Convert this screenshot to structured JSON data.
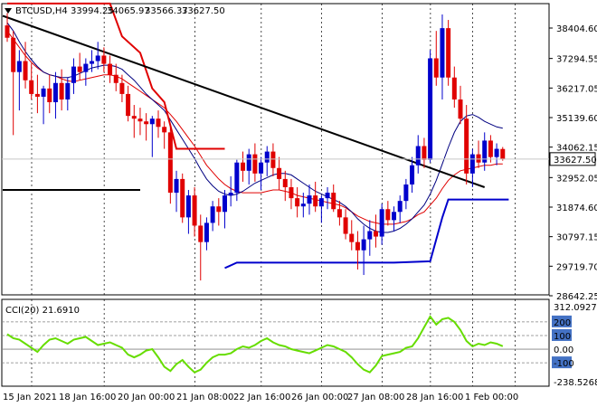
{
  "header": {
    "symbol": "BTCUSD,H4",
    "open": "33994.25",
    "high": "34065.97",
    "low": "33566.37",
    "close": "33627.50"
  },
  "chart_data": [
    {
      "type": "candlestick",
      "symbol": "BTCUSD",
      "timeframe": "H4",
      "price_axis_labels": [
        "38404.60",
        "37294.55",
        "36217.05",
        "35139.60",
        "34062.15",
        "32952.05",
        "31874.60",
        "30797.15",
        "29719.70",
        "28642.25"
      ],
      "price_axis_values": [
        38404.6,
        37294.55,
        36217.05,
        35139.6,
        34062.15,
        32952.05,
        31874.6,
        30797.15,
        29719.7,
        28642.25
      ],
      "ylim": [
        28642.25,
        39481.0
      ],
      "current_price_label": "33627.50",
      "current_price": 33627.5,
      "time_labels": [
        "15 Jan 2021",
        "18 Jan 16:00",
        "20 Jan 00:00",
        "21 Jan 08:00",
        "22 Jan 16:00",
        "26 Jan 00:00",
        "27 Jan 08:00",
        "28 Jan 16:00",
        "1 Feb 00:00"
      ],
      "up_color": "#0000cc",
      "down_color": "#e00000",
      "candles": [
        {
          "o": 38500,
          "h": 38950,
          "l": 37900,
          "c": 38050
        },
        {
          "o": 38050,
          "h": 38300,
          "l": 34500,
          "c": 36800
        },
        {
          "o": 36800,
          "h": 37600,
          "l": 35400,
          "c": 37200
        },
        {
          "o": 37200,
          "h": 37900,
          "l": 36200,
          "c": 36500
        },
        {
          "o": 36500,
          "h": 37100,
          "l": 35800,
          "c": 36000
        },
        {
          "o": 36000,
          "h": 36700,
          "l": 35300,
          "c": 35900
        },
        {
          "o": 35900,
          "h": 36300,
          "l": 34900,
          "c": 36200
        },
        {
          "o": 36200,
          "h": 36700,
          "l": 35300,
          "c": 35700
        },
        {
          "o": 35700,
          "h": 36800,
          "l": 35100,
          "c": 36400
        },
        {
          "o": 36400,
          "h": 36900,
          "l": 35400,
          "c": 35800
        },
        {
          "o": 35800,
          "h": 36600,
          "l": 35400,
          "c": 36400
        },
        {
          "o": 36400,
          "h": 37300,
          "l": 36000,
          "c": 37000
        },
        {
          "o": 37000,
          "h": 37500,
          "l": 36500,
          "c": 36800
        },
        {
          "o": 36800,
          "h": 37300,
          "l": 36300,
          "c": 37100
        },
        {
          "o": 37100,
          "h": 37600,
          "l": 36800,
          "c": 37200
        },
        {
          "o": 37200,
          "h": 37900,
          "l": 36900,
          "c": 37400
        },
        {
          "o": 37400,
          "h": 37700,
          "l": 36800,
          "c": 37100
        },
        {
          "o": 37100,
          "h": 37400,
          "l": 36400,
          "c": 36700
        },
        {
          "o": 36700,
          "h": 37100,
          "l": 36100,
          "c": 36400
        },
        {
          "o": 36400,
          "h": 36700,
          "l": 35700,
          "c": 36000
        },
        {
          "o": 36000,
          "h": 36300,
          "l": 35000,
          "c": 35200
        },
        {
          "o": 35200,
          "h": 35600,
          "l": 34400,
          "c": 35100
        },
        {
          "o": 35100,
          "h": 35500,
          "l": 34500,
          "c": 35000
        },
        {
          "o": 35000,
          "h": 35300,
          "l": 34300,
          "c": 34900
        },
        {
          "o": 34900,
          "h": 35200,
          "l": 33700,
          "c": 35100
        },
        {
          "o": 35100,
          "h": 35400,
          "l": 34400,
          "c": 34800
        },
        {
          "o": 34800,
          "h": 35000,
          "l": 34000,
          "c": 34600
        },
        {
          "o": 34600,
          "h": 34800,
          "l": 32000,
          "c": 32400
        },
        {
          "o": 32400,
          "h": 33200,
          "l": 31700,
          "c": 32900
        },
        {
          "o": 32900,
          "h": 33100,
          "l": 31300,
          "c": 31500
        },
        {
          "o": 31500,
          "h": 32500,
          "l": 30900,
          "c": 32300
        },
        {
          "o": 32300,
          "h": 32600,
          "l": 30800,
          "c": 31200
        },
        {
          "o": 31200,
          "h": 31600,
          "l": 29200,
          "c": 30600
        },
        {
          "o": 30600,
          "h": 31500,
          "l": 30300,
          "c": 31300
        },
        {
          "o": 31300,
          "h": 32100,
          "l": 31000,
          "c": 31900
        },
        {
          "o": 31900,
          "h": 32200,
          "l": 31200,
          "c": 31700
        },
        {
          "o": 31700,
          "h": 32500,
          "l": 31100,
          "c": 32300
        },
        {
          "o": 32300,
          "h": 33000,
          "l": 31900,
          "c": 32400
        },
        {
          "o": 32400,
          "h": 33600,
          "l": 32100,
          "c": 33500
        },
        {
          "o": 33500,
          "h": 33900,
          "l": 32800,
          "c": 33200
        },
        {
          "o": 33200,
          "h": 34000,
          "l": 32700,
          "c": 33800
        },
        {
          "o": 33800,
          "h": 34200,
          "l": 32800,
          "c": 33100
        },
        {
          "o": 33100,
          "h": 33700,
          "l": 32500,
          "c": 33500
        },
        {
          "o": 33500,
          "h": 34100,
          "l": 33000,
          "c": 33900
        },
        {
          "o": 33900,
          "h": 34200,
          "l": 33000,
          "c": 33300
        },
        {
          "o": 33300,
          "h": 33700,
          "l": 32500,
          "c": 32900
        },
        {
          "o": 32900,
          "h": 33200,
          "l": 32100,
          "c": 32600
        },
        {
          "o": 32600,
          "h": 32900,
          "l": 31800,
          "c": 32200
        },
        {
          "o": 32200,
          "h": 32600,
          "l": 31500,
          "c": 31900
        },
        {
          "o": 31900,
          "h": 32400,
          "l": 31500,
          "c": 32000
        },
        {
          "o": 32000,
          "h": 32700,
          "l": 31600,
          "c": 32300
        },
        {
          "o": 32300,
          "h": 32800,
          "l": 31700,
          "c": 31900
        },
        {
          "o": 31900,
          "h": 32300,
          "l": 31300,
          "c": 32200
        },
        {
          "o": 32200,
          "h": 32600,
          "l": 31800,
          "c": 32400
        },
        {
          "o": 32400,
          "h": 32700,
          "l": 31700,
          "c": 31800
        },
        {
          "o": 31800,
          "h": 32100,
          "l": 31200,
          "c": 31500
        },
        {
          "o": 31500,
          "h": 31800,
          "l": 30700,
          "c": 30900
        },
        {
          "o": 30900,
          "h": 31400,
          "l": 30300,
          "c": 30600
        },
        {
          "o": 30600,
          "h": 31000,
          "l": 29600,
          "c": 30300
        },
        {
          "o": 30300,
          "h": 31200,
          "l": 29400,
          "c": 30700
        },
        {
          "o": 30700,
          "h": 31400,
          "l": 30100,
          "c": 31000
        },
        {
          "o": 31000,
          "h": 31600,
          "l": 30400,
          "c": 30800
        },
        {
          "o": 30800,
          "h": 32000,
          "l": 30500,
          "c": 31800
        },
        {
          "o": 31800,
          "h": 32100,
          "l": 31200,
          "c": 31400
        },
        {
          "o": 31400,
          "h": 31900,
          "l": 31000,
          "c": 31700
        },
        {
          "o": 31700,
          "h": 32300,
          "l": 31300,
          "c": 32100
        },
        {
          "o": 32100,
          "h": 32900,
          "l": 31800,
          "c": 32700
        },
        {
          "o": 32700,
          "h": 33700,
          "l": 32400,
          "c": 33400
        },
        {
          "o": 33400,
          "h": 34500,
          "l": 33100,
          "c": 34100
        },
        {
          "o": 34100,
          "h": 34400,
          "l": 33300,
          "c": 33600
        },
        {
          "o": 33600,
          "h": 37600,
          "l": 33500,
          "c": 37300
        },
        {
          "o": 37300,
          "h": 38300,
          "l": 36300,
          "c": 36600
        },
        {
          "o": 36600,
          "h": 38900,
          "l": 35800,
          "c": 38400
        },
        {
          "o": 38400,
          "h": 38700,
          "l": 36300,
          "c": 36600
        },
        {
          "o": 36600,
          "h": 37000,
          "l": 35500,
          "c": 35800
        },
        {
          "o": 35800,
          "h": 36300,
          "l": 34900,
          "c": 35100
        },
        {
          "o": 35100,
          "h": 35600,
          "l": 32700,
          "c": 33100
        },
        {
          "o": 33100,
          "h": 34000,
          "l": 32600,
          "c": 33800
        },
        {
          "o": 33800,
          "h": 34300,
          "l": 33300,
          "c": 33500
        },
        {
          "o": 33500,
          "h": 34600,
          "l": 33200,
          "c": 34300
        },
        {
          "o": 34300,
          "h": 34500,
          "l": 33500,
          "c": 33700
        },
        {
          "o": 33700,
          "h": 34200,
          "l": 33400,
          "c": 34000
        },
        {
          "o": 33994.25,
          "h": 34065.97,
          "l": 33566.37,
          "c": 33627.5
        }
      ],
      "moving_averages": [
        {
          "color": "#e00000",
          "values": [
            38300,
            38000,
            37700,
            37400,
            37150,
            36950,
            36800,
            36700,
            36650,
            36550,
            36480,
            36450,
            36500,
            36550,
            36600,
            36650,
            36700,
            36700,
            36650,
            36550,
            36400,
            36250,
            36100,
            35950,
            35800,
            35650,
            35500,
            35250,
            35000,
            34700,
            34400,
            34100,
            33750,
            33400,
            33150,
            32900,
            32700,
            32550,
            32450,
            32400,
            32400,
            32400,
            32400,
            32450,
            32500,
            32500,
            32450,
            32400,
            32300,
            32250,
            32200,
            32150,
            32100,
            32050,
            32000,
            31950,
            31850,
            31700,
            31550,
            31450,
            31350,
            31300,
            31250,
            31250,
            31250,
            31300,
            31350,
            31450,
            31600,
            31700,
            31950,
            32200,
            32550,
            32850,
            33050,
            33200,
            33250,
            33300,
            33350,
            33400,
            33400,
            33450,
            33450
          ]
        },
        {
          "color": "#000080",
          "values": [
            38600,
            38300,
            37900,
            37550,
            37250,
            37000,
            36800,
            36700,
            36650,
            36600,
            36600,
            36650,
            36750,
            36850,
            36950,
            37000,
            37050,
            37050,
            37000,
            36900,
            36700,
            36500,
            36250,
            36000,
            35800,
            35600,
            35400,
            35050,
            34700,
            34350,
            34000,
            33650,
            33250,
            32900,
            32650,
            32450,
            32350,
            32300,
            32350,
            32450,
            32600,
            32750,
            32850,
            32950,
            33050,
            33100,
            33100,
            33050,
            32900,
            32750,
            32600,
            32450,
            32350,
            32250,
            32150,
            32050,
            31900,
            31700,
            31450,
            31250,
            31100,
            31000,
            30950,
            30950,
            31000,
            31100,
            31250,
            31450,
            31700,
            31950,
            32350,
            32850,
            33450,
            34050,
            34600,
            35000,
            35200,
            35250,
            35150,
            35000,
            34900,
            34800,
            34750
          ]
        },
        {
          "color": "#0000cc",
          "values": [
            null,
            null,
            null,
            null,
            null,
            null,
            null,
            null,
            null,
            null,
            null,
            null,
            null,
            null,
            null,
            null,
            null,
            null,
            null,
            null,
            null,
            null,
            null,
            null,
            null,
            null,
            null,
            null,
            null,
            null,
            null,
            null,
            null,
            null,
            null,
            null,
            null,
            null,
            null,
            null,
            null,
            null,
            null,
            null,
            null,
            null,
            null,
            null,
            null,
            null,
            null,
            null,
            null,
            null,
            null,
            null,
            null,
            null,
            null,
            null,
            null,
            null,
            null,
            null,
            null,
            null,
            null,
            null,
            null,
            null,
            null,
            null,
            null,
            null,
            null,
            null,
            null,
            null,
            null,
            null,
            null,
            null,
            null
          ]
        }
      ],
      "support_resistance_lines": [
        {
          "color": "#e00000",
          "points": [
            [
              0,
              39300
            ],
            [
              17,
              39300
            ],
            [
              19,
              38100
            ],
            [
              22,
              37500
            ],
            [
              24,
              36200
            ],
            [
              26,
              35700
            ],
            [
              28,
              34000
            ],
            [
              36,
              34000
            ]
          ]
        },
        {
          "color": "#0000cc",
          "points": [
            [
              36,
              29650
            ],
            [
              38,
              29850
            ],
            [
              57,
              29850
            ],
            [
              64,
              29850
            ],
            [
              70,
              29900
            ],
            [
              72,
              31500
            ],
            [
              73,
              32150
            ],
            [
              74,
              32150
            ],
            [
              83,
              32150
            ]
          ]
        },
        {
          "color": "#000000",
          "points": [
            [
              -1,
              32500
            ],
            [
              22,
              32500
            ]
          ]
        },
        {
          "color": "#000000",
          "points": [
            [
              -1,
              38850
            ],
            [
              79,
              32600
            ]
          ]
        }
      ],
      "cci": {
        "label": "CCI(20) 21.6910",
        "axis_labels": [
          "312.0927",
          "200",
          "100",
          "0.00",
          "-100",
          "-238.5268"
        ],
        "axis_values": [
          312.0927,
          200,
          100,
          0,
          -100,
          -238.5268
        ],
        "level_lines": [
          200,
          100,
          0,
          -100
        ],
        "color": "#66dd00",
        "values": [
          110,
          80,
          70,
          40,
          10,
          -20,
          30,
          70,
          80,
          60,
          40,
          70,
          80,
          90,
          60,
          30,
          40,
          50,
          30,
          10,
          -40,
          -60,
          -40,
          -10,
          0,
          -60,
          -130,
          -160,
          -110,
          -80,
          -130,
          -170,
          -150,
          -100,
          -60,
          -40,
          -40,
          -30,
          0,
          20,
          10,
          30,
          60,
          80,
          50,
          30,
          20,
          0,
          -10,
          -20,
          -30,
          -10,
          10,
          30,
          20,
          0,
          -20,
          -60,
          -110,
          -150,
          -170,
          -120,
          -50,
          -40,
          -30,
          -20,
          10,
          20,
          80,
          160,
          240,
          180,
          220,
          230,
          200,
          140,
          60,
          20,
          40,
          30,
          50,
          40,
          21.69
        ]
      },
      "grid": true,
      "vertical_grid_style": "dotted",
      "background": "#ffffff"
    }
  ]
}
